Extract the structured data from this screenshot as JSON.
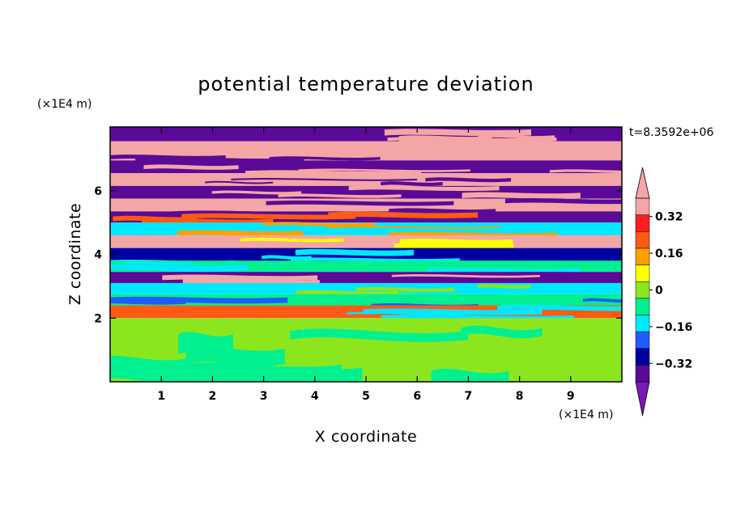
{
  "chart_data": {
    "type": "heatmap",
    "title": "potential temperature deviation",
    "xlabel": "X coordinate",
    "ylabel": "Z coordinate",
    "x_scale_note": "(×1E4 m)",
    "y_scale_note": "(×1E4 m)",
    "time_label": "t=8.3592e+06",
    "xlim": [
      0,
      10
    ],
    "ylim": [
      0,
      8
    ],
    "x_ticks": [
      "1",
      "2",
      "3",
      "4",
      "5",
      "6",
      "7",
      "8",
      "9"
    ],
    "y_ticks": [
      "2",
      "4",
      "6"
    ],
    "colorbar": {
      "levels": [
        -0.4,
        -0.32,
        -0.24,
        -0.16,
        -0.08,
        0,
        0.08,
        0.16,
        0.24,
        0.32,
        0.4
      ],
      "labels": [
        "0.32",
        "0.16",
        "0",
        "−0.16",
        "−0.32"
      ],
      "label_values": [
        0.32,
        0.16,
        0,
        -0.16,
        -0.32
      ],
      "colors": [
        "#5a0a96",
        "#0000a0",
        "#1e5cff",
        "#00e8ff",
        "#00f090",
        "#8ce61e",
        "#ffff00",
        "#ffa000",
        "#ff5a14",
        "#ff1e1e",
        "#f4a6a6"
      ],
      "extend_low_color": "#7a1ab4",
      "extend_high_color": "#f4a6a6"
    },
    "bands": [
      {
        "z": [
          7.55,
          8.0
        ],
        "dominant": "#5a0a96",
        "secondary": "#f4a6a6"
      },
      {
        "z": [
          6.95,
          7.55
        ],
        "dominant": "#f4a6a6",
        "secondary": "#5a0a96"
      },
      {
        "z": [
          6.55,
          6.95
        ],
        "dominant": "#5a0a96",
        "secondary": "#f4a6a6"
      },
      {
        "z": [
          6.15,
          6.55
        ],
        "dominant": "#f4a6a6",
        "secondary": "#5a0a96"
      },
      {
        "z": [
          5.75,
          6.15
        ],
        "dominant": "#5a0a96",
        "secondary": "#f4a6a6"
      },
      {
        "z": [
          5.35,
          5.75
        ],
        "dominant": "#f4a6a6",
        "secondary": "#5a0a96"
      },
      {
        "z": [
          5.0,
          5.35
        ],
        "dominant": "#5a0a96",
        "secondary": "#ff5a14"
      },
      {
        "z": [
          4.6,
          5.0
        ],
        "dominant": "#00e8ff",
        "secondary": "#ffa000"
      },
      {
        "z": [
          4.2,
          4.6
        ],
        "dominant": "#f4a6a6",
        "secondary": "#ffff00"
      },
      {
        "z": [
          3.8,
          4.2
        ],
        "dominant": "#0000a0",
        "secondary": "#00e8ff"
      },
      {
        "z": [
          3.45,
          3.8
        ],
        "dominant": "#00f090",
        "secondary": "#00e8ff"
      },
      {
        "z": [
          3.1,
          3.45
        ],
        "dominant": "#5a0a96",
        "secondary": "#f4a6a6"
      },
      {
        "z": [
          2.75,
          3.1
        ],
        "dominant": "#00e8ff",
        "secondary": "#8ce61e"
      },
      {
        "z": [
          2.4,
          2.75
        ],
        "dominant": "#00f090",
        "secondary": "#1e5cff"
      },
      {
        "z": [
          2.0,
          2.4
        ],
        "dominant": "#ff5a14",
        "secondary": "#00e8ff"
      },
      {
        "z": [
          0.0,
          2.0
        ],
        "dominant": "#8ce61e",
        "secondary": "#00f090"
      }
    ]
  }
}
